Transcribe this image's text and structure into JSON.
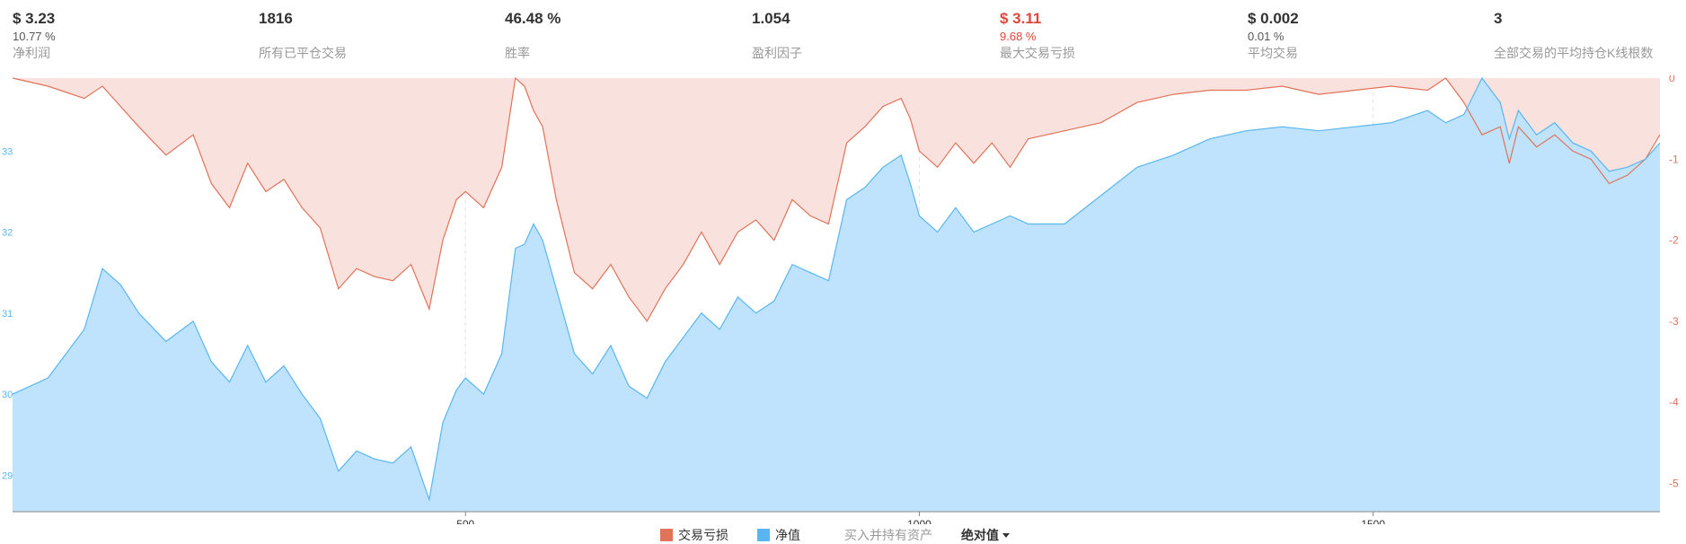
{
  "stats": [
    {
      "value": "$ 3.23",
      "sub": "10.77 %",
      "label": "净利润",
      "negative": false
    },
    {
      "value": "1816",
      "sub": "",
      "label": "所有已平仓交易",
      "negative": false
    },
    {
      "value": "46.48 %",
      "sub": "",
      "label": "胜率",
      "negative": false
    },
    {
      "value": "1.054",
      "sub": "",
      "label": "盈利因子",
      "negative": false
    },
    {
      "value": "$ 3.11",
      "sub": "9.68 %",
      "label": "最大交易亏损",
      "negative": true
    },
    {
      "value": "$ 0.002",
      "sub": "0.01 %",
      "label": "平均交易",
      "negative": false
    },
    {
      "value": "3",
      "sub": "",
      "label": "全部交易的平均持仓K线根数",
      "negative": false
    }
  ],
  "legend": {
    "drawdown": "交易亏损",
    "equity": "净值",
    "buy_hold": "买入并持有资产",
    "mode": "绝对值"
  },
  "colors": {
    "drawdown_fill": "#f9e1dd",
    "drawdown_line": "#e0735a",
    "equity_fill": "#bfe3fc",
    "equity_line": "#5ab6f0",
    "overlap_line": "#5a7fb5",
    "axis_right": "#e0735a",
    "axis_left": "#5ab6f0",
    "text": "#333333",
    "label": "#999999"
  },
  "chart_data": {
    "type": "area",
    "x_ticks": [
      500,
      1000,
      1500
    ],
    "x_range": [
      1,
      1816
    ],
    "y_left_ticks": [
      29,
      30,
      31,
      32,
      33
    ],
    "y_left_tick_labels": [
      "29",
      "30",
      "31",
      "32",
      "33"
    ],
    "y_left_range": [
      28.55,
      33.9
    ],
    "y_right_ticks": [
      0,
      -1,
      -2,
      -3,
      -4,
      -5
    ],
    "y_right_range": [
      -5.35,
      0
    ],
    "series": [
      {
        "name": "交易亏损",
        "axis": "right",
        "x": [
          1,
          40,
          80,
          100,
          140,
          170,
          200,
          220,
          240,
          260,
          280,
          300,
          320,
          340,
          360,
          380,
          400,
          420,
          440,
          460,
          475,
          490,
          500,
          520,
          540,
          555,
          565,
          575,
          585,
          600,
          620,
          640,
          660,
          680,
          700,
          720,
          740,
          760,
          780,
          800,
          820,
          840,
          860,
          880,
          900,
          920,
          940,
          960,
          980,
          990,
          1000,
          1020,
          1040,
          1060,
          1080,
          1100,
          1120,
          1140,
          1160,
          1200,
          1240,
          1280,
          1320,
          1360,
          1400,
          1440,
          1480,
          1520,
          1560,
          1580,
          1600,
          1620,
          1640,
          1650,
          1660,
          1680,
          1700,
          1720,
          1740,
          1760,
          1780,
          1800,
          1816
        ],
        "y": [
          0,
          -0.1,
          -0.25,
          -0.1,
          -0.6,
          -0.95,
          -0.7,
          -1.3,
          -1.6,
          -1.05,
          -1.4,
          -1.25,
          -1.6,
          -1.85,
          -2.6,
          -2.35,
          -2.45,
          -2.5,
          -2.3,
          -2.85,
          -2.0,
          -1.5,
          -1.4,
          -1.6,
          -1.1,
          0,
          -0.1,
          -0.4,
          -0.6,
          -1.5,
          -2.4,
          -2.6,
          -2.3,
          -2.7,
          -3.0,
          -2.6,
          -2.3,
          -1.9,
          -2.3,
          -1.9,
          -1.75,
          -2.0,
          -1.5,
          -1.7,
          -1.8,
          -0.8,
          -0.6,
          -0.35,
          -0.25,
          -0.5,
          -0.9,
          -1.1,
          -0.8,
          -1.05,
          -0.8,
          -1.1,
          -0.75,
          -0.7,
          -0.65,
          -0.55,
          -0.3,
          -0.2,
          -0.15,
          -0.15,
          -0.1,
          -0.2,
          -0.15,
          -0.1,
          -0.15,
          0,
          -0.3,
          -0.7,
          -0.6,
          -1.05,
          -0.6,
          -0.85,
          -0.7,
          -0.9,
          -1.0,
          -1.3,
          -1.2,
          -1.0,
          -0.7
        ]
      },
      {
        "name": "净值",
        "axis": "left",
        "x": [
          1,
          40,
          80,
          100,
          120,
          140,
          170,
          200,
          220,
          240,
          260,
          280,
          300,
          320,
          340,
          360,
          380,
          400,
          420,
          440,
          460,
          475,
          490,
          500,
          520,
          540,
          555,
          565,
          575,
          585,
          600,
          620,
          640,
          660,
          680,
          700,
          720,
          740,
          760,
          780,
          800,
          820,
          840,
          860,
          880,
          900,
          920,
          940,
          960,
          980,
          990,
          1000,
          1020,
          1040,
          1060,
          1080,
          1100,
          1120,
          1140,
          1160,
          1200,
          1240,
          1280,
          1320,
          1360,
          1400,
          1440,
          1480,
          1520,
          1560,
          1580,
          1600,
          1620,
          1640,
          1650,
          1660,
          1680,
          1700,
          1720,
          1740,
          1760,
          1780,
          1800,
          1816
        ],
        "y": [
          30.0,
          30.2,
          30.8,
          31.55,
          31.35,
          31.0,
          30.65,
          30.9,
          30.4,
          30.15,
          30.6,
          30.15,
          30.35,
          30.0,
          29.7,
          29.05,
          29.3,
          29.2,
          29.15,
          29.35,
          28.7,
          29.65,
          30.05,
          30.2,
          30.0,
          30.5,
          31.8,
          31.85,
          32.1,
          31.9,
          31.3,
          30.5,
          30.25,
          30.6,
          30.1,
          29.95,
          30.4,
          30.7,
          31.0,
          30.8,
          31.2,
          31.0,
          31.15,
          31.6,
          31.5,
          31.4,
          32.4,
          32.55,
          32.8,
          32.95,
          32.6,
          32.2,
          32.0,
          32.3,
          32.0,
          32.1,
          32.2,
          32.1,
          32.1,
          32.1,
          32.45,
          32.8,
          32.95,
          33.15,
          33.25,
          33.3,
          33.25,
          33.3,
          33.35,
          33.5,
          33.35,
          33.45,
          33.9,
          33.6,
          33.15,
          33.5,
          33.2,
          33.35,
          33.1,
          33.0,
          32.75,
          32.8,
          32.9,
          33.1
        ]
      }
    ]
  }
}
